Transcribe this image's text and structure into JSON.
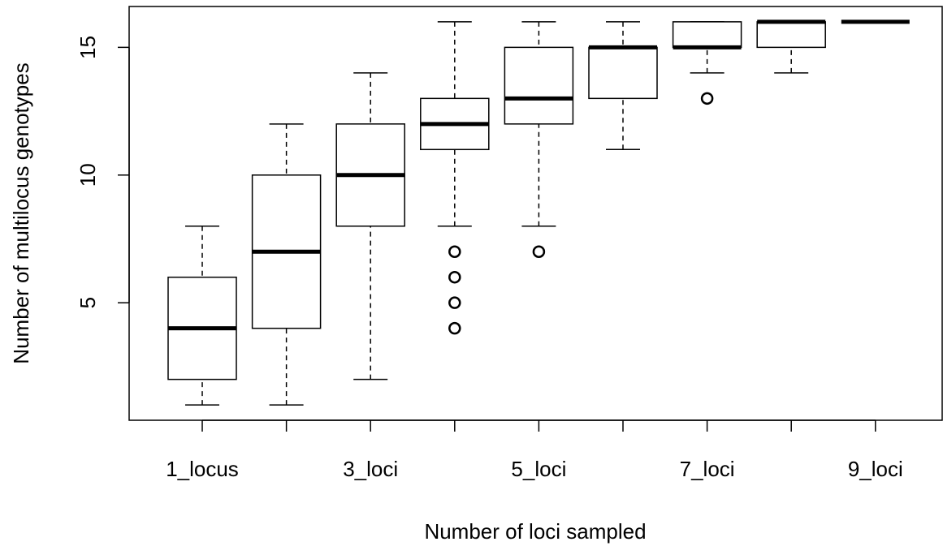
{
  "chart_data": {
    "type": "boxplot",
    "x_label": "Number of loci sampled",
    "y_label": "Number of multilocus genotypes",
    "categories": [
      "1_locus",
      null,
      "3_loci",
      null,
      "5_loci",
      null,
      "7_loci",
      null,
      "9_loci"
    ],
    "boxes": [
      {
        "min": 1,
        "q1": 2,
        "median": 4,
        "q3": 6,
        "max": 8,
        "outliers": []
      },
      {
        "min": 1,
        "q1": 4,
        "median": 7,
        "q3": 10,
        "max": 12,
        "outliers": []
      },
      {
        "min": 2,
        "q1": 8,
        "median": 10,
        "q3": 12,
        "max": 14,
        "outliers": []
      },
      {
        "min": 8,
        "q1": 11,
        "median": 12,
        "q3": 13,
        "max": 16,
        "outliers": [
          7,
          6,
          5,
          4
        ]
      },
      {
        "min": 8,
        "q1": 12,
        "median": 13,
        "q3": 15,
        "max": 16,
        "outliers": [
          7
        ]
      },
      {
        "min": 11,
        "q1": 13,
        "median": 15,
        "q3": 15,
        "max": 16,
        "outliers": []
      },
      {
        "min": 14,
        "q1": 15,
        "median": 15,
        "q3": 16,
        "max": 16,
        "outliers": [
          13
        ]
      },
      {
        "min": 14,
        "q1": 15,
        "median": 16,
        "q3": 16,
        "max": 16,
        "outliers": []
      },
      {
        "min": 16,
        "q1": 16,
        "median": 16,
        "q3": 16,
        "max": 16,
        "outliers": []
      }
    ],
    "ylim": [
      0.4,
      16.6
    ],
    "yticks": [
      5,
      10,
      15
    ]
  }
}
